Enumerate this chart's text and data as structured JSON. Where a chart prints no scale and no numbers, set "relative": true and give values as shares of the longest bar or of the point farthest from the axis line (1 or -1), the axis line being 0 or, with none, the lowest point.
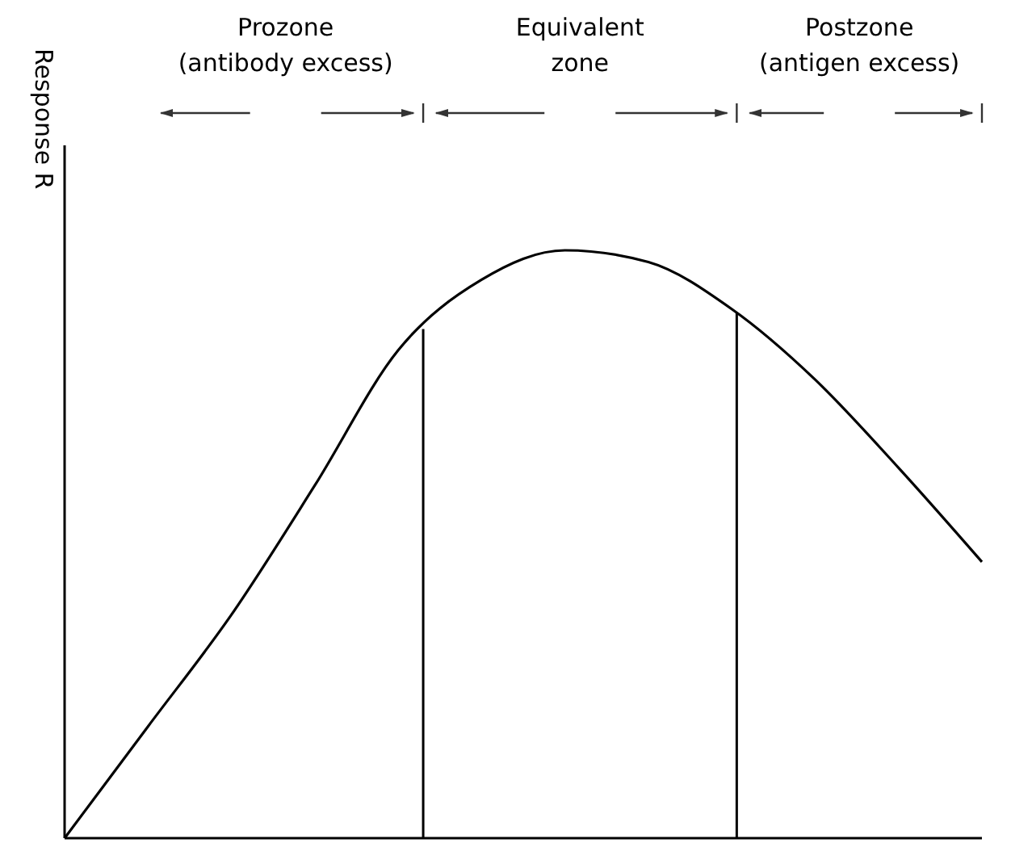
{
  "chart_data": {
    "type": "line",
    "relative": true,
    "ylabel": "Response R",
    "color": "#000000",
    "marker": "none",
    "line_style": "solid",
    "categories": [
      null,
      null,
      null,
      null,
      null,
      null,
      null,
      null,
      null,
      null,
      null,
      null
    ],
    "values": [
      0,
      0.19,
      0.38,
      0.6,
      0.83,
      0.95,
      1,
      0.98,
      0.9,
      0.78,
      0.63,
      0.47
    ],
    "annotations": [
      "Prozone\n(antibody excess)",
      "Equivalent\nzone",
      "Postzone\n(antigen excess)"
    ]
  }
}
